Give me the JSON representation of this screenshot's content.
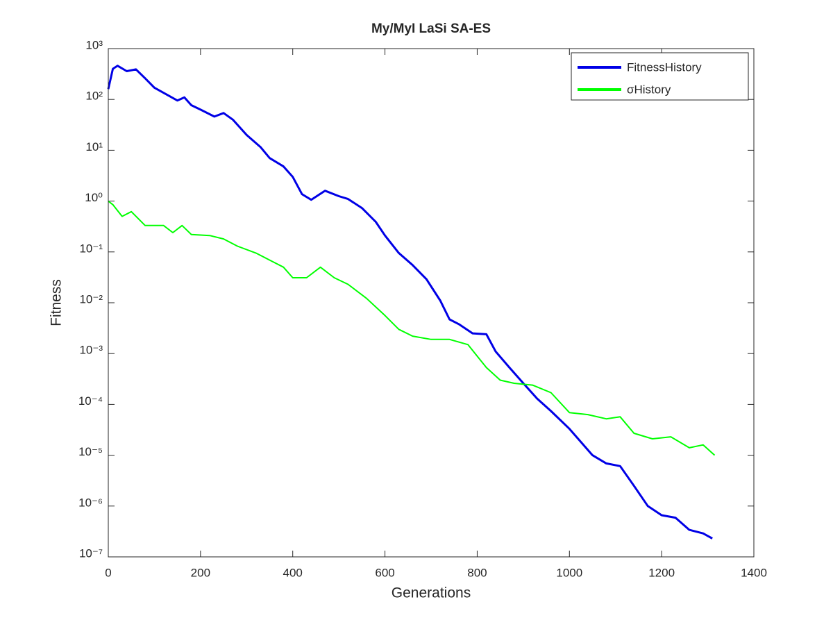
{
  "chart_data": {
    "type": "line",
    "title": "My/MyI LaSi SA-ES",
    "xlabel": "Generations",
    "ylabel": "Fitness",
    "log_y": true,
    "legend_position": "northeast",
    "xlim": [
      0,
      1400
    ],
    "xticks": [
      0,
      200,
      400,
      600,
      800,
      1000,
      1200,
      1400
    ],
    "ylim": [
      1e-07,
      1000
    ],
    "yticks": [
      {
        "value": 1e-07,
        "label": "10⁻⁷"
      },
      {
        "value": 1e-06,
        "label": "10⁻⁶"
      },
      {
        "value": 1e-05,
        "label": "10⁻⁵"
      },
      {
        "value": 0.0001,
        "label": "10⁻⁴"
      },
      {
        "value": 0.001,
        "label": "10⁻³"
      },
      {
        "value": 0.01,
        "label": "10⁻²"
      },
      {
        "value": 0.1,
        "label": "10⁻¹"
      },
      {
        "value": 1,
        "label": "10⁰"
      },
      {
        "value": 10,
        "label": "10¹"
      },
      {
        "value": 100,
        "label": "10²"
      },
      {
        "value": 1000,
        "label": "10³"
      }
    ],
    "series": [
      {
        "name": "FitnessHistory",
        "color": "#0000e6",
        "width": 3,
        "x": [
          0,
          10,
          20,
          40,
          60,
          80,
          100,
          130,
          150,
          165,
          180,
          200,
          230,
          250,
          270,
          300,
          330,
          350,
          380,
          400,
          420,
          440,
          470,
          500,
          520,
          550,
          580,
          600,
          630,
          660,
          690,
          720,
          740,
          760,
          790,
          820,
          840,
          870,
          900,
          930,
          960,
          1000,
          1050,
          1080,
          1110,
          1140,
          1170,
          1200,
          1230,
          1260,
          1290,
          1310
        ],
        "values": [
          160,
          400,
          460,
          360,
          390,
          260,
          170,
          120,
          95,
          110,
          77,
          63,
          46,
          54,
          40,
          20,
          11.6,
          7,
          4.8,
          3.0,
          1.37,
          1.06,
          1.6,
          1.25,
          1.1,
          0.73,
          0.39,
          0.21,
          0.095,
          0.055,
          0.029,
          0.011,
          0.0047,
          0.0038,
          0.0025,
          0.0024,
          0.0011,
          0.00053,
          0.00026,
          0.00013,
          7.4e-05,
          3.3e-05,
          1e-05,
          6.9e-06,
          6.1e-06,
          2.5e-06,
          1e-06,
          6.6e-07,
          5.9e-07,
          3.4e-07,
          2.9e-07,
          2.3e-07
        ]
      },
      {
        "name": "σHistory",
        "color": "#00ff00",
        "width": 2,
        "x": [
          0,
          10,
          30,
          50,
          80,
          120,
          140,
          160,
          180,
          220,
          250,
          280,
          320,
          350,
          380,
          400,
          430,
          460,
          490,
          520,
          560,
          600,
          630,
          660,
          700,
          740,
          780,
          820,
          850,
          880,
          920,
          960,
          1000,
          1040,
          1080,
          1110,
          1140,
          1180,
          1220,
          1260,
          1290,
          1315
        ],
        "values": [
          1.0,
          0.85,
          0.5,
          0.62,
          0.33,
          0.33,
          0.24,
          0.33,
          0.22,
          0.21,
          0.18,
          0.13,
          0.095,
          0.069,
          0.05,
          0.031,
          0.031,
          0.05,
          0.031,
          0.023,
          0.0122,
          0.0056,
          0.003,
          0.0022,
          0.0019,
          0.0019,
          0.0015,
          0.00053,
          0.0003,
          0.00026,
          0.00024,
          0.00017,
          6.9e-05,
          6.3e-05,
          5.2e-05,
          5.7e-05,
          2.7e-05,
          2.1e-05,
          2.3e-05,
          1.4e-05,
          1.6e-05,
          1e-05
        ]
      }
    ]
  }
}
